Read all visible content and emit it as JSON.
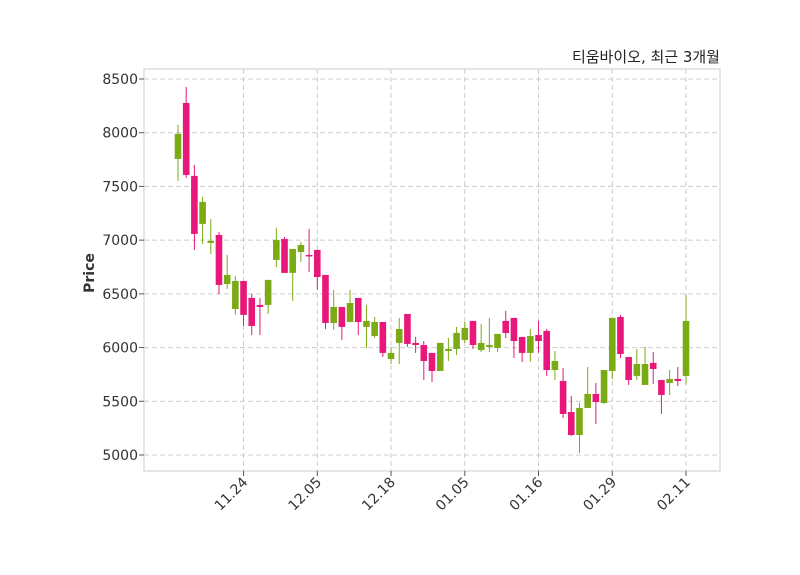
{
  "chart_data": {
    "type": "candlestick",
    "title": "티움바이오, 최근 3개월",
    "xlabel": "",
    "ylabel": "Price",
    "ylim": [
      4851,
      8593
    ],
    "xlim": [
      -4.15,
      66.15
    ],
    "yticks": [
      5000,
      5500,
      6000,
      6500,
      7000,
      7500,
      8000,
      8500
    ],
    "xticks": [
      {
        "index": 8,
        "label": "11.24"
      },
      {
        "index": 17,
        "label": "12.05"
      },
      {
        "index": 26,
        "label": "12.18"
      },
      {
        "index": 35,
        "label": "01.05"
      },
      {
        "index": 44,
        "label": "01.16"
      },
      {
        "index": 53,
        "label": "01.29"
      },
      {
        "index": 62,
        "label": "02.11"
      }
    ],
    "grid": true,
    "colors": {
      "up": "#7aab14",
      "down": "#e8177a",
      "grid": "#cccccc",
      "frame": "#dddddd"
    },
    "ohlc": [
      [
        7756,
        8073,
        7551,
        7989
      ],
      [
        8277,
        8426,
        7579,
        7607
      ],
      [
        7598,
        7700,
        6909,
        7058
      ],
      [
        7151,
        7402,
        6965,
        7356
      ],
      [
        6974,
        7197,
        6871,
        6993
      ],
      [
        7048,
        7076,
        6499,
        6583
      ],
      [
        6592,
        6862,
        6546,
        6676
      ],
      [
        6359,
        6667,
        6304,
        6620
      ],
      [
        6620,
        6620,
        6201,
        6304
      ],
      [
        6462,
        6499,
        6117,
        6201
      ],
      [
        6397,
        6462,
        6117,
        6378
      ],
      [
        6397,
        6630,
        6313,
        6630
      ],
      [
        6816,
        7114,
        6750,
        7002
      ],
      [
        7011,
        7030,
        6695,
        6695
      ],
      [
        6695,
        6918,
        6434,
        6918
      ],
      [
        6890,
        6983,
        6797,
        6955
      ],
      [
        6862,
        7104,
        6704,
        6853
      ],
      [
        6909,
        6909,
        6536,
        6657
      ],
      [
        6676,
        6676,
        6173,
        6229
      ],
      [
        6229,
        6536,
        6164,
        6378
      ],
      [
        6378,
        6378,
        6071,
        6192
      ],
      [
        6238,
        6536,
        6238,
        6415
      ],
      [
        6462,
        6462,
        6117,
        6238
      ],
      [
        6192,
        6397,
        5995,
        6248
      ],
      [
        6108,
        6285,
        6089,
        6238
      ],
      [
        6238,
        6238,
        5912,
        5950
      ],
      [
        5894,
        6006,
        5847,
        5950
      ],
      [
        6043,
        6276,
        5847,
        6173
      ],
      [
        6313,
        6313,
        6006,
        6034
      ],
      [
        6043,
        6099,
        5950,
        6024
      ],
      [
        6024,
        6061,
        5698,
        5875
      ],
      [
        5950,
        5950,
        5680,
        5782
      ],
      [
        5782,
        6043,
        5782,
        6043
      ],
      [
        5968,
        6089,
        5875,
        5987
      ],
      [
        5987,
        6192,
        5931,
        6136
      ],
      [
        6071,
        6238,
        6043,
        6183
      ],
      [
        6248,
        6248,
        5987,
        6024
      ],
      [
        5977,
        6220,
        5959,
        6043
      ],
      [
        6006,
        6276,
        5959,
        6024
      ],
      [
        5996,
        6127,
        5959,
        6127
      ],
      [
        6248,
        6341,
        6089,
        6136
      ],
      [
        6276,
        6276,
        5903,
        6061
      ],
      [
        6099,
        6099,
        5866,
        5950
      ],
      [
        5950,
        6173,
        5866,
        6108
      ],
      [
        6117,
        6248,
        5950,
        6061
      ],
      [
        6155,
        6173,
        5736,
        5791
      ],
      [
        5791,
        5968,
        5698,
        5875
      ],
      [
        5689,
        5810,
        5345,
        5382
      ],
      [
        5400,
        5549,
        5177,
        5186
      ],
      [
        5186,
        5484,
        5019,
        5438
      ],
      [
        5438,
        5819,
        5438,
        5568
      ],
      [
        5568,
        5670,
        5289,
        5493
      ],
      [
        5484,
        5791,
        5475,
        5791
      ],
      [
        5782,
        6276,
        5708,
        6276
      ],
      [
        6285,
        6304,
        5903,
        5940
      ],
      [
        5912,
        5912,
        5652,
        5698
      ],
      [
        5736,
        5987,
        5698,
        5847
      ],
      [
        5652,
        6006,
        5652,
        5847
      ],
      [
        5857,
        5959,
        5661,
        5801
      ],
      [
        5698,
        5698,
        5382,
        5559
      ],
      [
        5670,
        5791,
        5559,
        5708
      ],
      [
        5708,
        5819,
        5642,
        5689
      ],
      [
        5736,
        6490,
        5661,
        6248
      ]
    ]
  }
}
